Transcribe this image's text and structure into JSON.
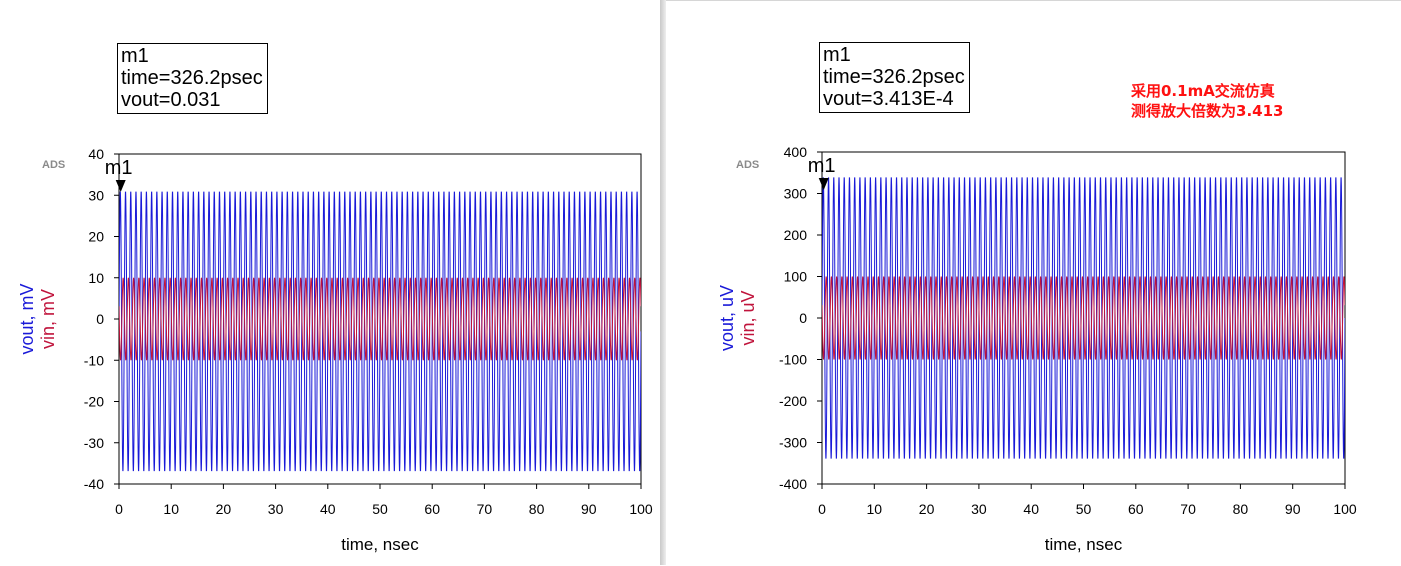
{
  "colors": {
    "vout": "#1a1ad8",
    "vin": "#c0143c",
    "axis": "#000000",
    "annotation": "#ff1111"
  },
  "chart_data": [
    {
      "type": "line",
      "logo": "ADS",
      "xlabel": "time, nsec",
      "ylabel_series": [
        "vout, mV",
        "vin, mV"
      ],
      "xlim": [
        0,
        100
      ],
      "ylim": [
        -40,
        40
      ],
      "xticks": [
        0,
        10,
        20,
        30,
        40,
        50,
        60,
        70,
        80,
        90,
        100
      ],
      "yticks": [
        40,
        30,
        20,
        10,
        0,
        -10,
        -20,
        -30,
        -40
      ],
      "marker": {
        "name": "m1",
        "lines": [
          "m1",
          "time=326.2psec",
          "vout=0.031"
        ],
        "x": 0.3262
      },
      "series": [
        {
          "name": "vout",
          "unit": "mV",
          "waveform": "sine",
          "amplitude": 34,
          "offset": -3,
          "frequency_ghz": 1.0,
          "color": "#1a1ad8"
        },
        {
          "name": "vin",
          "unit": "mV",
          "waveform": "sine",
          "amplitude": 10,
          "offset": 0,
          "frequency_ghz": 1.0,
          "color": "#c0143c"
        }
      ]
    },
    {
      "type": "line",
      "logo": "ADS",
      "xlabel": "time, nsec",
      "ylabel_series": [
        "vout, uV",
        "vin, uV"
      ],
      "xlim": [
        0,
        100
      ],
      "ylim": [
        -400,
        400
      ],
      "xticks": [
        0,
        10,
        20,
        30,
        40,
        50,
        60,
        70,
        80,
        90,
        100
      ],
      "yticks": [
        400,
        300,
        200,
        100,
        0,
        -100,
        -200,
        -300,
        -400
      ],
      "marker": {
        "name": "m1",
        "lines": [
          "m1",
          "time=326.2psec",
          "vout=3.413E-4"
        ],
        "x": 0.3262
      },
      "series": [
        {
          "name": "vout",
          "unit": "uV",
          "waveform": "sine",
          "amplitude": 340,
          "offset": 0,
          "frequency_ghz": 1.0,
          "color": "#1a1ad8"
        },
        {
          "name": "vin",
          "unit": "uV",
          "waveform": "sine",
          "amplitude": 100,
          "offset": 0,
          "frequency_ghz": 1.0,
          "color": "#c0143c"
        }
      ]
    }
  ],
  "annotation": {
    "line1": "采用0.1mA交流仿真",
    "line2": "测得放大倍数为3.413"
  }
}
